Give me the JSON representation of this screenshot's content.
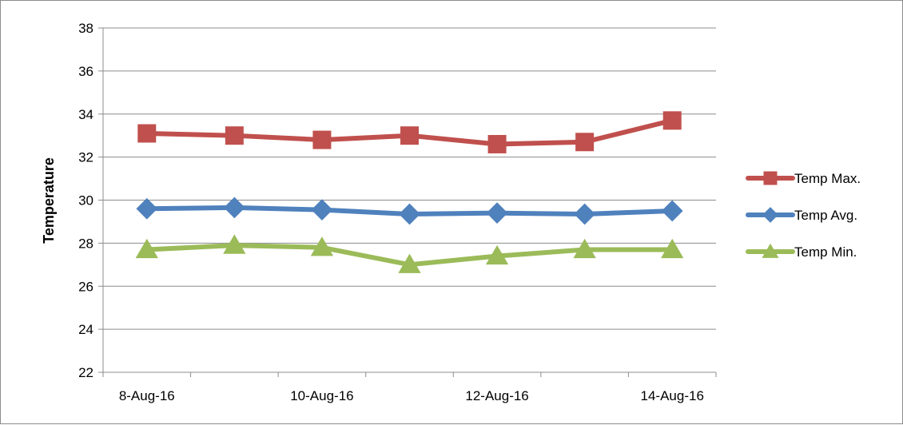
{
  "chart_data": {
    "type": "line",
    "title": "",
    "xlabel": "",
    "ylabel": "Temperature",
    "ylim": [
      22,
      38
    ],
    "ytick_step": 2,
    "x_tick_labels": [
      "8-Aug-16",
      "10-Aug-16",
      "12-Aug-16",
      "14-Aug-16"
    ],
    "x_tick_indices": [
      0,
      2,
      4,
      6
    ],
    "x": [
      "8-Aug-16",
      "9-Aug-16",
      "10-Aug-16",
      "11-Aug-16",
      "12-Aug-16",
      "13-Aug-16",
      "14-Aug-16"
    ],
    "grid": true,
    "legend_position": "right",
    "series": [
      {
        "name": "Temp Max.",
        "color": "#C0504D",
        "marker": "square",
        "values": [
          33.1,
          33.0,
          32.8,
          33.0,
          32.6,
          32.7,
          33.7
        ]
      },
      {
        "name": "Temp Avg.",
        "color": "#4F81BD",
        "marker": "diamond",
        "values": [
          29.6,
          29.65,
          29.55,
          29.35,
          29.4,
          29.35,
          29.5
        ]
      },
      {
        "name": "Temp Min.",
        "color": "#9BBB59",
        "marker": "triangle",
        "values": [
          27.7,
          27.9,
          27.8,
          27.0,
          27.4,
          27.7,
          27.7
        ]
      }
    ]
  }
}
